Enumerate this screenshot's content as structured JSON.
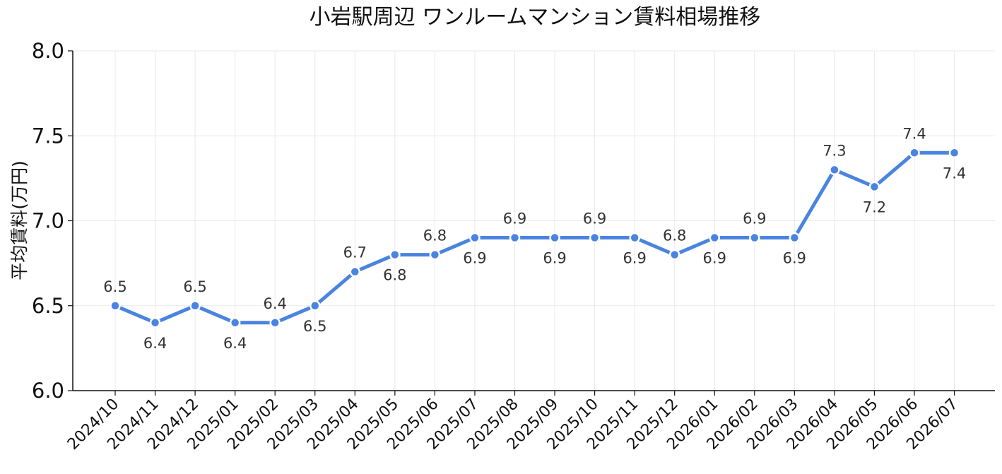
{
  "chart_data": {
    "type": "line",
    "title": "小岩駅周辺 ワンルームマンション賃料相場推移",
    "ylabel": "平均賃料(万円)",
    "xlabel": "",
    "categories": [
      "2024/10",
      "2024/11",
      "2024/12",
      "2025/01",
      "2025/02",
      "2025/03",
      "2025/04",
      "2025/05",
      "2025/06",
      "2025/07",
      "2025/08",
      "2025/09",
      "2025/10",
      "2025/11",
      "2025/12",
      "2026/01",
      "2026/02",
      "2026/03",
      "2026/04",
      "2026/05",
      "2026/06",
      "2026/07"
    ],
    "series": [
      {
        "values": [
          6.5,
          6.4,
          6.5,
          6.4,
          6.4,
          6.5,
          6.7,
          6.8,
          6.8,
          6.9,
          6.9,
          6.9,
          6.9,
          6.9,
          6.8,
          6.9,
          6.9,
          6.9,
          7.3,
          7.2,
          7.4,
          7.4
        ]
      }
    ],
    "data_labels": [
      "6.5",
      "6.4",
      "6.5",
      "6.4",
      "6.4",
      "6.5",
      "6.7",
      "6.8",
      "6.8",
      "6.9",
      "6.9",
      "6.9",
      "6.9",
      "6.9",
      "6.8",
      "6.9",
      "6.9",
      "6.9",
      "7.3",
      "7.2",
      "7.4",
      "7.4"
    ],
    "label_positions": [
      "above",
      "below",
      "above",
      "below",
      "above",
      "below",
      "above",
      "below",
      "above",
      "below",
      "above",
      "below",
      "above",
      "below",
      "above",
      "below",
      "above",
      "below",
      "above",
      "below",
      "above",
      "below"
    ],
    "ylim": [
      6.0,
      8.0
    ],
    "yticks": [
      "6.0",
      "6.5",
      "7.0",
      "7.5",
      "8.0"
    ],
    "grid": true,
    "color": "#4a84e0"
  }
}
